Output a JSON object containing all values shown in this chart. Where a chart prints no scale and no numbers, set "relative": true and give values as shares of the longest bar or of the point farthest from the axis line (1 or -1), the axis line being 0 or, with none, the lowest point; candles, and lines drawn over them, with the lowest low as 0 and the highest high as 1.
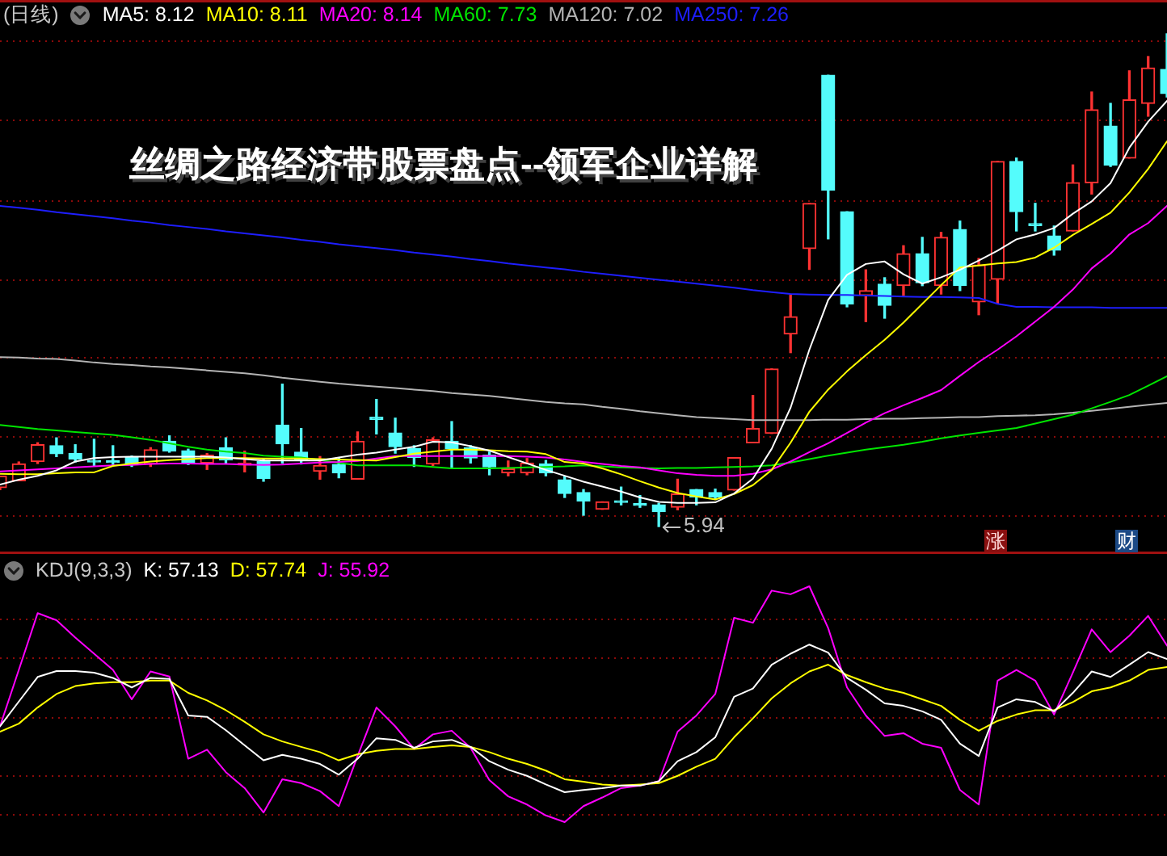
{
  "chart_data": [
    {
      "type": "candlestick",
      "title": "丝绸之路经济带股票盘点--领军企业详解",
      "subtitle": "(日线)",
      "relative": true,
      "legend": "top left",
      "categories": [
        null,
        null,
        null,
        null,
        null,
        null,
        null,
        null,
        null,
        null,
        null,
        null,
        null,
        null,
        null,
        null,
        null,
        null,
        null,
        null,
        null,
        null,
        null,
        null,
        null,
        null,
        null,
        null,
        null,
        null,
        null,
        null,
        null,
        null,
        null,
        null,
        null,
        null,
        null,
        null,
        null,
        null,
        null,
        null,
        null,
        null,
        null,
        null,
        null,
        null,
        null,
        null,
        null,
        null,
        null,
        null,
        null,
        null,
        null,
        null,
        null,
        null,
        null
      ],
      "ohlc": [
        [
          0.079,
          0.102,
          0.075,
          0.102
        ],
        [
          0.093,
          0.131,
          0.093,
          0.127
        ],
        [
          0.132,
          0.17,
          0.128,
          0.166
        ],
        [
          0.164,
          0.18,
          0.142,
          0.148
        ],
        [
          0.148,
          0.166,
          0.131,
          0.137
        ],
        [
          0.134,
          0.177,
          0.124,
          0.131
        ],
        [
          0.133,
          0.164,
          0.124,
          0.13
        ],
        [
          0.14,
          0.143,
          0.122,
          0.126
        ],
        [
          0.127,
          0.16,
          0.122,
          0.156
        ],
        [
          0.173,
          0.184,
          0.151,
          0.153
        ],
        [
          0.154,
          0.157,
          0.126,
          0.129
        ],
        [
          0.129,
          0.148,
          0.116,
          0.145
        ],
        [
          0.16,
          0.18,
          0.129,
          0.135
        ],
        [
          0.125,
          0.153,
          0.111,
          0.128
        ],
        [
          0.132,
          0.138,
          0.092,
          0.098
        ],
        [
          0.206,
          0.289,
          0.129,
          0.168
        ],
        [
          0.151,
          0.199,
          0.127,
          0.134
        ],
        [
          0.112,
          0.142,
          0.096,
          0.124
        ],
        [
          0.126,
          0.14,
          0.099,
          0.109
        ],
        [
          0.096,
          0.192,
          0.096,
          0.173
        ],
        [
          0.222,
          0.258,
          0.188,
          0.217
        ],
        [
          0.19,
          0.22,
          0.149,
          0.162
        ],
        [
          0.158,
          0.164,
          0.122,
          0.14
        ],
        [
          0.127,
          0.18,
          0.124,
          0.176
        ],
        [
          0.173,
          0.213,
          0.118,
          0.158
        ],
        [
          0.16,
          0.164,
          0.129,
          0.139
        ],
        [
          0.145,
          0.151,
          0.105,
          0.121
        ],
        [
          0.109,
          0.133,
          0.103,
          0.117
        ],
        [
          0.109,
          0.138,
          0.105,
          0.129
        ],
        [
          0.127,
          0.134,
          0.103,
          0.109
        ],
        [
          0.095,
          0.102,
          0.059,
          0.067
        ],
        [
          0.069,
          0.075,
          0.023,
          0.052
        ],
        [
          0.035,
          0.05,
          0.035,
          0.05
        ],
        [
          0.052,
          0.08,
          0.044,
          0.049
        ],
        [
          0.046,
          0.063,
          0.039,
          0.043
        ],
        [
          0.044,
          0.047,
          0,
          0.03
        ],
        [
          0.039,
          0.096,
          0.034,
          0.066
        ],
        [
          0.075,
          0.075,
          0.044,
          0.06
        ],
        [
          0.069,
          0.076,
          0.055,
          0.06
        ],
        [
          0.074,
          0.14,
          0.074,
          0.14
        ],
        [
          0.17,
          0.266,
          0.17,
          0.199
        ],
        [
          0.189,
          0.32,
          0.189,
          0.32
        ],
        [
          0.391,
          0.47,
          0.353,
          0.426
        ],
        [
          0.564,
          0.656,
          0.522,
          0.656
        ],
        [
          0.916,
          0.916,
          0.584,
          0.683
        ],
        [
          0.639,
          0.639,
          0.446,
          0.452
        ],
        [
          0.469,
          0.521,
          0.416,
          0.479
        ],
        [
          0.492,
          0.505,
          0.423,
          0.449
        ],
        [
          0.489,
          0.57,
          0.469,
          0.554
        ],
        [
          0.554,
          0.587,
          0.489,
          0.495
        ],
        [
          0.489,
          0.597,
          0.472,
          0.587
        ],
        [
          0.603,
          0.62,
          0.479,
          0.489
        ],
        [
          0.456,
          0.544,
          0.43,
          0.531
        ],
        [
          0.502,
          0.741,
          0.452,
          0.741
        ],
        [
          0.741,
          0.748,
          0.6,
          0.639
        ],
        [
          0.615,
          0.656,
          0.6,
          0.611
        ],
        [
          0.59,
          0.61,
          0.551,
          0.561
        ],
        [
          0.6,
          0.734,
          0.6,
          0.698
        ],
        [
          0.698,
          0.882,
          0.675,
          0.846
        ],
        [
          0.813,
          0.859,
          0.731,
          0.734
        ],
        [
          0.748,
          0.925,
          0.748,
          0.866
        ],
        [
          0.859,
          0.954,
          0.833,
          0.931
        ],
        [
          0.928,
          1,
          0.872,
          0.879
        ]
      ],
      "colors": [
        "#ff3232",
        "#ff3232",
        "#ff3232",
        "#54fcfc",
        "#54fcfc",
        "#54fcfc",
        "#54fcfc",
        "#54fcfc",
        "#ff3232",
        "#54fcfc",
        "#54fcfc",
        "#ff3232",
        "#54fcfc",
        "#ff3232",
        "#54fcfc",
        "#54fcfc",
        "#54fcfc",
        "#ff3232",
        "#54fcfc",
        "#ff3232",
        "#54fcfc",
        "#54fcfc",
        "#54fcfc",
        "#ff3232",
        "#54fcfc",
        "#54fcfc",
        "#54fcfc",
        "#ff3232",
        "#ff3232",
        "#54fcfc",
        "#54fcfc",
        "#54fcfc",
        "#ff3232",
        "#54fcfc",
        "#54fcfc",
        "#54fcfc",
        "#ff3232",
        "#54fcfc",
        "#54fcfc",
        "#ff3232",
        "#ff3232",
        "#ff3232",
        "#ff3232",
        "#ff3232",
        "#54fcfc",
        "#54fcfc",
        "#ff3232",
        "#54fcfc",
        "#ff3232",
        "#54fcfc",
        "#ff3232",
        "#54fcfc",
        "#ff3232",
        "#ff3232",
        "#54fcfc",
        "#54fcfc",
        "#54fcfc",
        "#ff3232",
        "#ff3232",
        "#54fcfc",
        "#ff3232",
        "#ff3232",
        "#54fcfc"
      ],
      "series": [
        {
          "name": "MA5: 8.12",
          "type": "line",
          "color": "#ffffff",
          "values": [
            0.085,
            0.095,
            0.103,
            0.114,
            0.132,
            0.139,
            0.141,
            0.142,
            0.142,
            0.142,
            0.142,
            0.142,
            0.14,
            0.137,
            0.134,
            0.134,
            0.134,
            0.134,
            0.14,
            0.146,
            0.15,
            0.156,
            0.162,
            0.172,
            0.171,
            0.163,
            0.154,
            0.141,
            0.128,
            0.115,
            0.103,
            0.091,
            0.081,
            0.071,
            0.059,
            0.05,
            0.048,
            0.048,
            0.049,
            0.067,
            0.097,
            0.158,
            0.241,
            0.359,
            0.46,
            0.511,
            0.533,
            0.538,
            0.512,
            0.493,
            0.506,
            0.521,
            0.54,
            0.56,
            0.583,
            0.593,
            0.606,
            0.635,
            0.66,
            0.697,
            0.769,
            0.822,
            0.864
          ]
        },
        {
          "name": "MA10: 8.11",
          "type": "line",
          "color": "#ffff00",
          "values": [
            0.107,
            0.106,
            0.106,
            0.108,
            0.11,
            0.11,
            0.123,
            0.128,
            0.132,
            0.135,
            0.137,
            0.139,
            0.139,
            0.139,
            0.138,
            0.138,
            0.138,
            0.137,
            0.136,
            0.135,
            0.134,
            0.141,
            0.148,
            0.152,
            0.156,
            0.156,
            0.155,
            0.153,
            0.152,
            0.147,
            0.131,
            0.128,
            0.118,
            0.106,
            0.092,
            0.079,
            0.068,
            0.061,
            0.055,
            0.066,
            0.084,
            0.115,
            0.17,
            0.233,
            0.278,
            0.315,
            0.348,
            0.379,
            0.414,
            0.452,
            0.49,
            0.526,
            0.53,
            0.534,
            0.537,
            0.546,
            0.566,
            0.592,
            0.614,
            0.637,
            0.678,
            0.726,
            0.782
          ]
        },
        {
          "name": "MA20: 8.14",
          "type": "line",
          "color": "#ff00ff",
          "values": [
            0.112,
            0.114,
            0.116,
            0.118,
            0.12,
            0.122,
            0.124,
            0.125,
            0.127,
            0.128,
            0.128,
            0.127,
            0.127,
            0.126,
            0.125,
            0.126,
            0.128,
            0.13,
            0.131,
            0.133,
            0.138,
            0.143,
            0.143,
            0.143,
            0.143,
            0.143,
            0.143,
            0.143,
            0.142,
            0.14,
            0.136,
            0.131,
            0.127,
            0.123,
            0.12,
            0.114,
            0.108,
            0.105,
            0.103,
            0.103,
            0.107,
            0.116,
            0.132,
            0.151,
            0.169,
            0.19,
            0.211,
            0.23,
            0.246,
            0.261,
            0.277,
            0.306,
            0.334,
            0.359,
            0.386,
            0.416,
            0.446,
            0.481,
            0.524,
            0.554,
            0.593,
            0.616,
            0.651
          ]
        },
        {
          "name": "MA60: 7.73",
          "type": "line",
          "color": "#00e600",
          "values": [
            0.206,
            0.202,
            0.198,
            0.195,
            0.192,
            0.189,
            0.186,
            0.181,
            0.176,
            0.169,
            0.162,
            0.156,
            0.152,
            0.149,
            0.144,
            0.142,
            0.14,
            0.135,
            0.129,
            0.124,
            0.124,
            0.124,
            0.124,
            0.121,
            0.118,
            0.118,
            0.118,
            0.119,
            0.12,
            0.121,
            0.122,
            0.124,
            0.122,
            0.12,
            0.119,
            0.118,
            0.119,
            0.119,
            0.12,
            0.121,
            0.122,
            0.124,
            0.13,
            0.137,
            0.144,
            0.15,
            0.156,
            0.161,
            0.166,
            0.172,
            0.179,
            0.185,
            0.19,
            0.195,
            0.2,
            0.209,
            0.218,
            0.227,
            0.24,
            0.253,
            0.267,
            0.286,
            0.305
          ]
        },
        {
          "name": "MA120: 7.02",
          "type": "line",
          "color": "#b4b4b4",
          "values": [
            0.344,
            0.343,
            0.341,
            0.34,
            0.337,
            0.333,
            0.33,
            0.328,
            0.325,
            0.323,
            0.32,
            0.317,
            0.314,
            0.311,
            0.307,
            0.302,
            0.298,
            0.294,
            0.29,
            0.287,
            0.284,
            0.281,
            0.278,
            0.275,
            0.271,
            0.268,
            0.265,
            0.261,
            0.257,
            0.253,
            0.25,
            0.248,
            0.243,
            0.239,
            0.234,
            0.23,
            0.226,
            0.222,
            0.22,
            0.218,
            0.216,
            0.216,
            0.216,
            0.216,
            0.217,
            0.217,
            0.218,
            0.219,
            0.219,
            0.22,
            0.221,
            0.222,
            0.222,
            0.224,
            0.225,
            0.226,
            0.228,
            0.231,
            0.235,
            0.239,
            0.243,
            0.247,
            0.251
          ]
        },
        {
          "name": "MA250: 7.26",
          "type": "line",
          "color": "#1e1eff",
          "values": [
            0.651,
            0.647,
            0.643,
            0.638,
            0.634,
            0.63,
            0.626,
            0.621,
            0.617,
            0.612,
            0.608,
            0.604,
            0.599,
            0.595,
            0.591,
            0.587,
            0.582,
            0.578,
            0.573,
            0.569,
            0.565,
            0.561,
            0.556,
            0.552,
            0.548,
            0.543,
            0.539,
            0.534,
            0.53,
            0.526,
            0.522,
            0.517,
            0.513,
            0.509,
            0.505,
            0.501,
            0.497,
            0.493,
            0.489,
            0.485,
            0.48,
            0.476,
            0.472,
            0.471,
            0.47,
            0.47,
            0.469,
            0.468,
            0.467,
            0.466,
            0.466,
            0.465,
            0.464,
            0.452,
            0.446,
            0.446,
            0.445,
            0.445,
            0.445,
            0.444,
            0.444,
            0.444,
            0.444
          ]
        }
      ],
      "ref_lines": [
        {
          "axis": "y",
          "value": 0.987,
          "color": "#8c0a0a",
          "line_style": "dotted"
        },
        {
          "axis": "y",
          "value": 0.826,
          "color": "#8c0a0a",
          "line_style": "dotted"
        },
        {
          "axis": "y",
          "value": 0.662,
          "color": "#8c0a0a",
          "line_style": "dotted"
        },
        {
          "axis": "y",
          "value": 0.502,
          "color": "#8c0a0a",
          "line_style": "dotted"
        },
        {
          "axis": "y",
          "value": 0.344,
          "color": "#8c0a0a",
          "line_style": "dotted"
        },
        {
          "axis": "y",
          "value": 0.184,
          "color": "#8c0a0a",
          "line_style": "dotted"
        },
        {
          "axis": "y",
          "value": 0.023,
          "color": "#8c0a0a",
          "line_style": "dotted"
        }
      ],
      "annotations": [
        "5.94",
        "涨",
        "财"
      ]
    },
    {
      "type": "line",
      "title": "KDJ(9,3,3)",
      "relative": true,
      "legend": "top left",
      "categories": [
        null,
        null,
        null,
        null,
        null,
        null,
        null,
        null,
        null,
        null,
        null,
        null,
        null,
        null,
        null,
        null,
        null,
        null,
        null,
        null,
        null,
        null,
        null,
        null,
        null,
        null,
        null,
        null,
        null,
        null,
        null,
        null,
        null,
        null,
        null,
        null,
        null,
        null,
        null,
        null,
        null,
        null,
        null,
        null,
        null,
        null,
        null,
        null,
        null,
        null,
        null,
        null,
        null,
        null,
        null,
        null,
        null,
        null,
        null,
        null,
        null,
        null,
        null
      ],
      "series": [
        {
          "name": "K: 57.13",
          "color": "#ffffff",
          "values": [
            0.385,
            0.494,
            0.602,
            0.628,
            0.628,
            0.621,
            0.598,
            0.556,
            0.598,
            0.593,
            0.433,
            0.427,
            0.368,
            0.302,
            0.236,
            0.26,
            0.243,
            0.22,
            0.173,
            0.243,
            0.333,
            0.326,
            0.291,
            0.319,
            0.326,
            0.295,
            0.232,
            0.195,
            0.168,
            0.13,
            0.096,
            0.106,
            0.114,
            0.125,
            0.125,
            0.144,
            0.232,
            0.272,
            0.337,
            0.515,
            0.551,
            0.656,
            0.704,
            0.744,
            0.709,
            0.598,
            0.546,
            0.486,
            0.475,
            0.451,
            0.414,
            0.309,
            0.255,
            0.468,
            0.504,
            0.492,
            0.451,
            0.532,
            0.626,
            0.602,
            0.656,
            0.711,
            0.681
          ]
        },
        {
          "name": "D: 57.74",
          "color": "#ffff00",
          "values": [
            0.362,
            0.397,
            0.468,
            0.527,
            0.562,
            0.574,
            0.579,
            0.579,
            0.586,
            0.586,
            0.532,
            0.499,
            0.456,
            0.405,
            0.35,
            0.319,
            0.295,
            0.272,
            0.236,
            0.263,
            0.278,
            0.286,
            0.286,
            0.295,
            0.302,
            0.295,
            0.272,
            0.243,
            0.22,
            0.191,
            0.153,
            0.142,
            0.13,
            0.125,
            0.13,
            0.136,
            0.168,
            0.208,
            0.243,
            0.337,
            0.42,
            0.508,
            0.574,
            0.626,
            0.656,
            0.61,
            0.579,
            0.551,
            0.532,
            0.504,
            0.475,
            0.414,
            0.366,
            0.409,
            0.437,
            0.456,
            0.456,
            0.492,
            0.539,
            0.556,
            0.586,
            0.633,
            0.646
          ]
        },
        {
          "name": "J: 55.92",
          "color": "#ff00ff",
          "values": [
            0.385,
            0.633,
            0.882,
            0.851,
            0.775,
            0.704,
            0.633,
            0.504,
            0.626,
            0.604,
            0.243,
            0.283,
            0.184,
            0.114,
            0.007,
            0.153,
            0.136,
            0.101,
            0.035,
            0.255,
            0.468,
            0.385,
            0.286,
            0.35,
            0.366,
            0.291,
            0.149,
            0.078,
            0.042,
            -0.006,
            -0.035,
            0.035,
            0.073,
            0.114,
            0.125,
            0.144,
            0.362,
            0.433,
            0.527,
            0.862,
            0.84,
            0.981,
            0.965,
            1,
            0.816,
            0.556,
            0.433,
            0.343,
            0.355,
            0.309,
            0.291,
            0.106,
            0.042,
            0.586,
            0.633,
            0.586,
            0.437,
            0.621,
            0.811,
            0.711,
            0.783,
            0.87,
            0.74
          ]
        }
      ],
      "ref_lines": [
        {
          "axis": "y",
          "value": 0.86,
          "color": "#8c0a0a",
          "line_style": "dotted"
        },
        {
          "axis": "y",
          "value": 0.69,
          "color": "#8c0a0a",
          "line_style": "dotted"
        },
        {
          "axis": "y",
          "value": 0.428,
          "color": "#8c0a0a",
          "line_style": "dotted"
        },
        {
          "axis": "y",
          "value": 0.172,
          "color": "#8c0a0a",
          "line_style": "dotted"
        },
        {
          "axis": "y",
          "value": 0,
          "color": "#8c0a0a",
          "line_style": "dotted"
        }
      ]
    }
  ]
}
